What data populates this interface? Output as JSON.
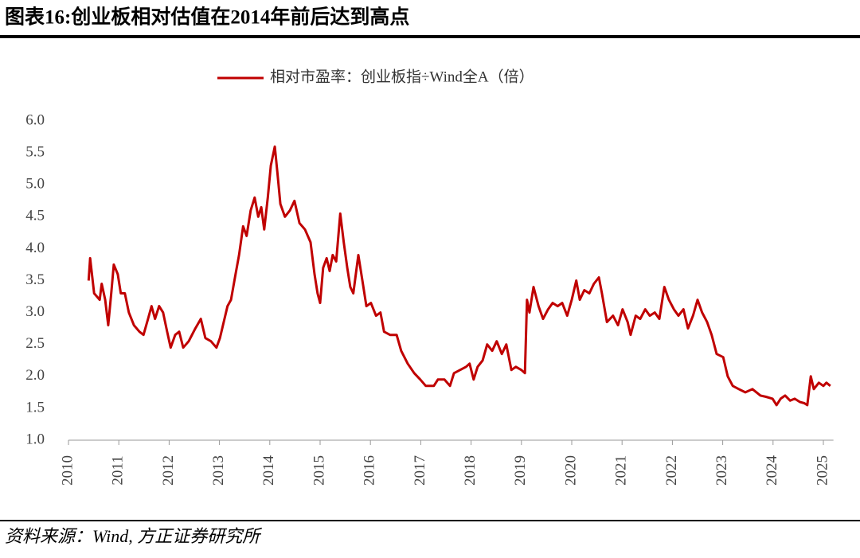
{
  "title": "图表16:创业板相对估值在2014年前后达到高点",
  "source": "资料来源：Wind, 方正证券研究所",
  "chart_data": {
    "type": "line",
    "x": [
      2010.4,
      2010.43,
      2010.51,
      2010.62,
      2010.66,
      2010.73,
      2010.79,
      2010.85,
      2010.9,
      2010.98,
      2011.04,
      2011.12,
      2011.2,
      2011.3,
      2011.41,
      2011.49,
      2011.58,
      2011.65,
      2011.72,
      2011.8,
      2011.88,
      2011.96,
      2012.03,
      2012.12,
      2012.2,
      2012.28,
      2012.39,
      2012.52,
      2012.63,
      2012.72,
      2012.83,
      2012.94,
      2013.01,
      2013.1,
      2013.16,
      2013.23,
      2013.32,
      2013.39,
      2013.47,
      2013.54,
      2013.62,
      2013.7,
      2013.77,
      2013.83,
      2013.89,
      2013.96,
      2014.02,
      2014.1,
      2014.15,
      2014.21,
      2014.3,
      2014.4,
      2014.49,
      2014.59,
      2014.7,
      2014.81,
      2014.89,
      2014.95,
      2015.0,
      2015.06,
      2015.13,
      2015.19,
      2015.25,
      2015.32,
      2015.4,
      2015.47,
      2015.54,
      2015.6,
      2015.66,
      2015.76,
      2015.84,
      2015.92,
      2016.01,
      2016.11,
      2016.2,
      2016.27,
      2016.39,
      2016.52,
      2016.61,
      2016.74,
      2016.87,
      2016.99,
      2017.1,
      2017.26,
      2017.34,
      2017.47,
      2017.58,
      2017.66,
      2017.78,
      2017.9,
      2017.97,
      2018.05,
      2018.13,
      2018.23,
      2018.32,
      2018.42,
      2018.51,
      2018.61,
      2018.7,
      2018.8,
      2018.89,
      2019.0,
      2019.07,
      2019.11,
      2019.16,
      2019.24,
      2019.34,
      2019.43,
      2019.53,
      2019.62,
      2019.72,
      2019.81,
      2019.91,
      2020.0,
      2020.09,
      2020.16,
      2020.25,
      2020.35,
      2020.44,
      2020.54,
      2020.6,
      2020.7,
      2020.82,
      2020.92,
      2021.01,
      2021.11,
      2021.17,
      2021.27,
      2021.36,
      2021.46,
      2021.55,
      2021.65,
      2021.74,
      2021.84,
      2021.93,
      2022.03,
      2022.12,
      2022.22,
      2022.31,
      2022.41,
      2022.5,
      2022.59,
      2022.69,
      2022.78,
      2022.88,
      2023.01,
      2023.1,
      2023.2,
      2023.32,
      2023.45,
      2023.59,
      2023.75,
      2023.86,
      2023.99,
      2024.07,
      2024.15,
      2024.24,
      2024.34,
      2024.43,
      2024.53,
      2024.62,
      2024.68,
      2024.75,
      2024.81,
      2024.91,
      2025.0,
      2025.06,
      2025.14
    ],
    "series": [
      {
        "name": "相对市盈率：创业板指÷Wind全A（倍）",
        "color": "#c00000",
        "values": [
          3.5,
          3.85,
          3.3,
          3.2,
          3.45,
          3.2,
          2.8,
          3.3,
          3.75,
          3.6,
          3.3,
          3.3,
          3.0,
          2.8,
          2.7,
          2.65,
          2.9,
          3.1,
          2.9,
          3.1,
          3.0,
          2.7,
          2.45,
          2.65,
          2.7,
          2.45,
          2.55,
          2.75,
          2.9,
          2.6,
          2.55,
          2.45,
          2.6,
          2.9,
          3.1,
          3.2,
          3.6,
          3.9,
          4.35,
          4.2,
          4.6,
          4.8,
          4.5,
          4.65,
          4.3,
          4.8,
          5.3,
          5.6,
          5.2,
          4.7,
          4.5,
          4.6,
          4.75,
          4.4,
          4.3,
          4.1,
          3.6,
          3.3,
          3.15,
          3.7,
          3.85,
          3.65,
          3.9,
          3.8,
          4.55,
          4.1,
          3.7,
          3.4,
          3.3,
          3.9,
          3.5,
          3.1,
          3.15,
          2.95,
          3.0,
          2.7,
          2.65,
          2.65,
          2.4,
          2.2,
          2.05,
          1.95,
          1.85,
          1.85,
          1.95,
          1.95,
          1.85,
          2.05,
          2.1,
          2.15,
          2.2,
          1.95,
          2.15,
          2.25,
          2.5,
          2.4,
          2.55,
          2.35,
          2.5,
          2.1,
          2.15,
          2.1,
          2.05,
          3.2,
          3.0,
          3.4,
          3.1,
          2.9,
          3.05,
          3.15,
          3.1,
          3.15,
          2.95,
          3.2,
          3.5,
          3.2,
          3.35,
          3.3,
          3.45,
          3.55,
          3.3,
          2.85,
          2.95,
          2.8,
          3.05,
          2.85,
          2.65,
          2.95,
          2.9,
          3.05,
          2.95,
          3.0,
          2.9,
          3.4,
          3.2,
          3.05,
          2.95,
          3.05,
          2.75,
          2.95,
          3.2,
          3.0,
          2.85,
          2.65,
          2.35,
          2.3,
          2.0,
          1.85,
          1.8,
          1.75,
          1.8,
          1.7,
          1.68,
          1.65,
          1.55,
          1.65,
          1.7,
          1.62,
          1.65,
          1.6,
          1.58,
          1.55,
          2.0,
          1.8,
          1.9,
          1.85,
          1.9,
          1.85
        ]
      }
    ],
    "xlim": [
      2010,
      2025.2
    ],
    "xticks": [
      2010,
      2011,
      2012,
      2013,
      2014,
      2015,
      2016,
      2017,
      2018,
      2019,
      2020,
      2021,
      2022,
      2023,
      2024,
      2025
    ],
    "ylim": [
      1,
      6
    ],
    "yticks": [
      {
        "value": 1,
        "label": "1.0"
      },
      {
        "value": 1.5,
        "label": "1.5"
      },
      {
        "value": 2,
        "label": "2.0"
      },
      {
        "value": 2.5,
        "label": "2.5"
      },
      {
        "value": 3,
        "label": "3.0"
      },
      {
        "value": 3.5,
        "label": "3.5"
      },
      {
        "value": 4,
        "label": "4.0"
      },
      {
        "value": 4.5,
        "label": "4.5"
      },
      {
        "value": 5,
        "label": "5.0"
      },
      {
        "value": 5.5,
        "label": "5.5"
      },
      {
        "value": 6,
        "label": "6.0"
      }
    ],
    "legend": "top",
    "grid": false
  }
}
